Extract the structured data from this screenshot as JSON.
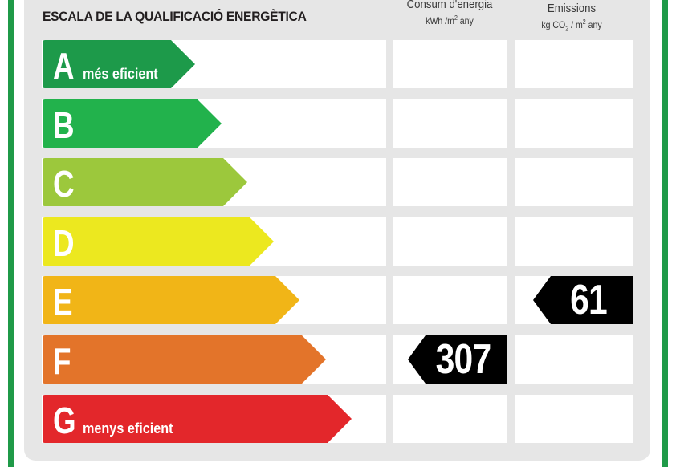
{
  "header": {
    "title": "ESCALA DE LA QUALIFICACIÓ ENERGÈTICA",
    "consum_title": "Consum d'energia",
    "consum_unit_pre": "kWh /m",
    "consum_unit_sup": "2",
    "consum_unit_post": " any",
    "emissions_title": "Emissions",
    "emissions_unit_pre": "kg CO",
    "emissions_unit_sub": "2",
    "emissions_unit_mid": " / m",
    "emissions_unit_sup": "2",
    "emissions_unit_post": " any"
  },
  "ratings": [
    {
      "letter": "A",
      "label": "més eficient",
      "color": "#1d9a4a"
    },
    {
      "letter": "B",
      "label": "",
      "color": "#22b24c"
    },
    {
      "letter": "C",
      "label": "",
      "color": "#9cc83c"
    },
    {
      "letter": "D",
      "label": "",
      "color": "#ece81f"
    },
    {
      "letter": "E",
      "label": "",
      "color": "#f1b517"
    },
    {
      "letter": "F",
      "label": "",
      "color": "#e3742a"
    },
    {
      "letter": "G",
      "label": "menys eficient",
      "color": "#e3272b"
    }
  ],
  "consumption": {
    "value": "307",
    "rating": "F"
  },
  "emissions": {
    "value": "61",
    "rating": "E"
  },
  "colors": {
    "frame": "#1f9a48",
    "panel": "#e6e6e6",
    "marker": "#000000"
  }
}
